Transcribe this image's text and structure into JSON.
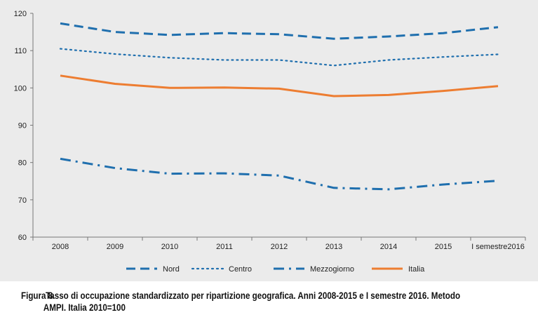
{
  "chart_data": {
    "type": "line",
    "categories": [
      "2008",
      "2009",
      "2010",
      "2011",
      "2012",
      "2013",
      "2014",
      "2015",
      "I semestre2016"
    ],
    "ylim": [
      60,
      120
    ],
    "yticks": [
      "60",
      "70",
      "80",
      "90",
      "100",
      "110",
      "120"
    ],
    "series": [
      {
        "name": "Nord",
        "values": [
          117.3,
          115.0,
          114.2,
          114.7,
          114.4,
          113.2,
          113.8,
          114.7,
          116.3
        ],
        "color": "#1f6fae",
        "style": "dashed"
      },
      {
        "name": "Centro",
        "values": [
          110.5,
          109.1,
          108.1,
          107.5,
          107.5,
          106.0,
          107.5,
          108.3,
          109.0
        ],
        "color": "#1f6fae",
        "style": "dotted"
      },
      {
        "name": "Mezzogiorno",
        "values": [
          81.0,
          78.5,
          77.0,
          77.1,
          76.5,
          73.2,
          72.8,
          74.1,
          75.1
        ],
        "color": "#1f6fae",
        "style": "dash-dot"
      },
      {
        "name": "Italia",
        "values": [
          103.3,
          101.1,
          100.0,
          100.1,
          99.8,
          97.8,
          98.1,
          99.2,
          100.5
        ],
        "color": "#ed7d31",
        "style": "solid"
      }
    ],
    "grid": false,
    "legend_position": "bottom"
  },
  "caption": {
    "label": "Figura 8.",
    "line1": "Tasso di occupazione standardizzato per ripartizione geografica. Anni 2008-2015 e I semestre 2016. Metodo",
    "line2": "AMPI. Italia 2010=100"
  }
}
